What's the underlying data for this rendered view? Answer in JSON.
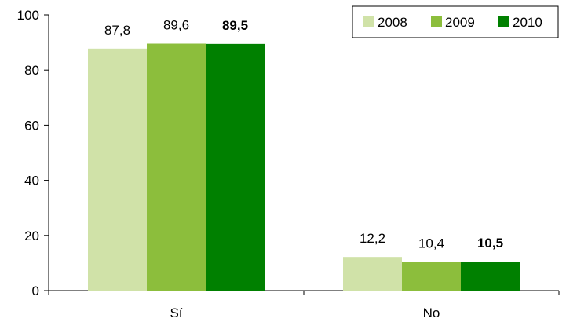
{
  "chart_data": {
    "type": "bar",
    "categories": [
      "Sí",
      "No"
    ],
    "series": [
      {
        "name": "2008",
        "values": [
          87.8,
          12.2
        ],
        "labels": [
          "87,8",
          "12,2"
        ],
        "color": "#d0e2a8",
        "bold": false
      },
      {
        "name": "2009",
        "values": [
          89.6,
          10.4
        ],
        "labels": [
          "89,6",
          "10,4"
        ],
        "color": "#8cbe3c",
        "bold": false
      },
      {
        "name": "2010",
        "values": [
          89.5,
          10.5
        ],
        "labels": [
          "89,5",
          "10,5"
        ],
        "color": "#008000",
        "bold": true
      }
    ],
    "ylim": [
      0,
      100
    ],
    "yticks": [
      0,
      20,
      40,
      60,
      80,
      100
    ],
    "ytick_labels": [
      "0",
      "20",
      "40",
      "60",
      "80",
      "100"
    ],
    "legend_position": "top-right",
    "grid": false,
    "title": "",
    "xlabel": "",
    "ylabel": ""
  }
}
